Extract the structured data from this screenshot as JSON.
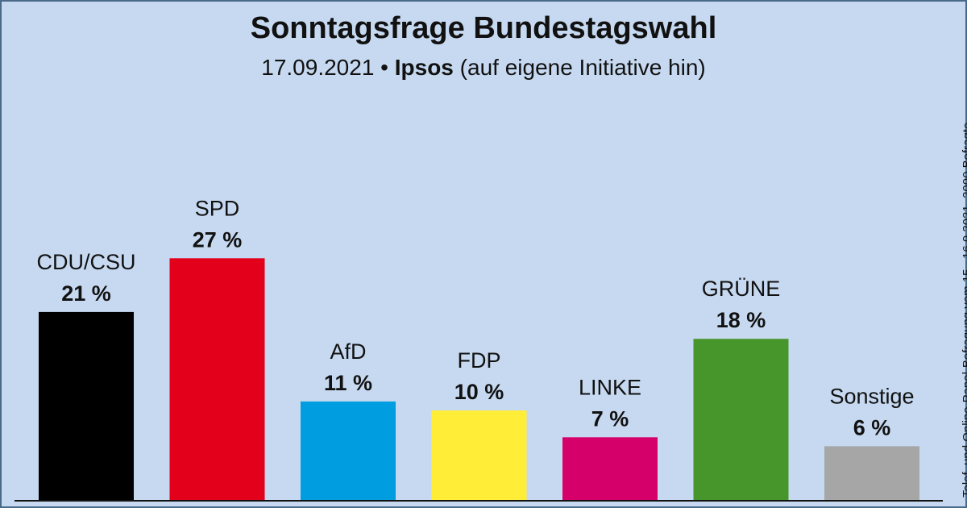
{
  "header": {
    "title": "Sonntagsfrage Bundestagswahl",
    "subtitle_date": "17.09.2021 •",
    "subtitle_pollster": "Ipsos",
    "subtitle_note": "(auf eigene Initiative hin)"
  },
  "side_note": "Telef. und Online-Panel-Befragung vom 15.–16.9.2021, 2000 Befragte",
  "chart_data": {
    "type": "bar",
    "categories": [
      "CDU/CSU",
      "SPD",
      "AfD",
      "FDP",
      "LINKE",
      "GRÜNE",
      "Sonstige"
    ],
    "values": [
      21,
      27,
      11,
      10,
      7,
      18,
      6
    ],
    "value_labels": [
      "21 %",
      "27 %",
      "11 %",
      "10 %",
      "7 %",
      "18 %",
      "6 %"
    ],
    "colors": [
      "#000000",
      "#e3001b",
      "#009ee0",
      "#ffed37",
      "#d6006a",
      "#46962b",
      "#a6a6a6"
    ],
    "title": "Sonntagsfrage Bundestagswahl",
    "unit": "%",
    "ylim": [
      0,
      30
    ],
    "grid": false,
    "legend": "none"
  }
}
